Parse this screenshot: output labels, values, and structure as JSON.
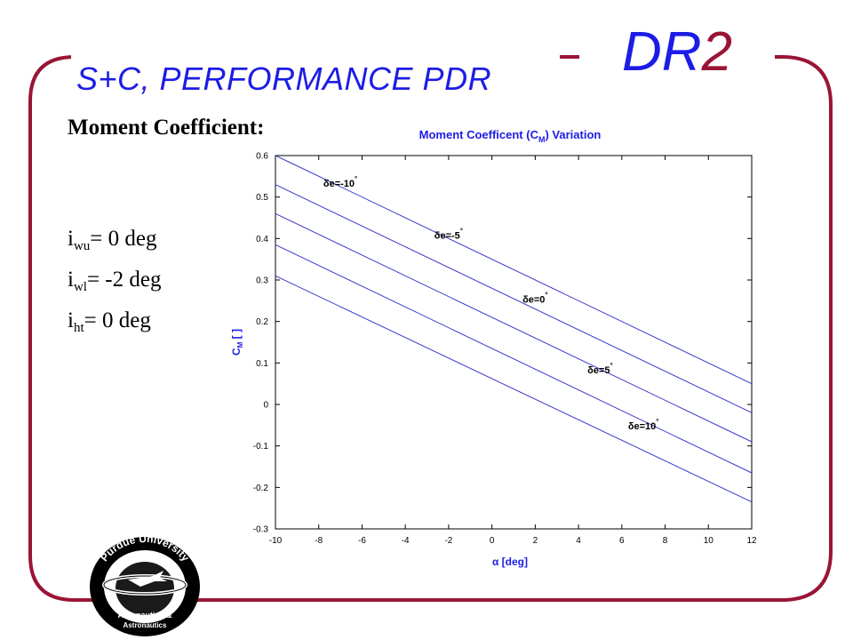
{
  "slide": {
    "subtitle": "S+C, PERFORMANCE PDR",
    "brand_main": "DR",
    "brand_number": "2",
    "heading": "Moment Coefficient:",
    "colors": {
      "frame": "#9a1535",
      "blue": "#1c1ce6"
    }
  },
  "incidence": [
    {
      "symbol": "i",
      "subscript": "wu",
      "text": "= 0 deg"
    },
    {
      "symbol": "i",
      "subscript": "wl",
      "text": "= -2 deg"
    },
    {
      "symbol": "i",
      "subscript": "ht",
      "text": "= 0 deg"
    }
  ],
  "logo": {
    "top_text": "Purdue University",
    "bottom_text_1": "Aeronautics &",
    "bottom_text_2": "Astronautics",
    "icon": "purdue-aero-logo-icon"
  },
  "chart_data": {
    "type": "line",
    "title_prefix": "Moment Coefficent (C",
    "title_sub": "M",
    "title_suffix": ") Variation",
    "xlabel": "α [deg]",
    "ylabel_main": "C",
    "ylabel_sub": "M",
    "ylabel_suffix": " [ ]",
    "xlim": [
      -10,
      12
    ],
    "ylim": [
      -0.3,
      0.6
    ],
    "xticks": [
      -10,
      -8,
      -6,
      -4,
      -2,
      0,
      2,
      4,
      6,
      8,
      10,
      12
    ],
    "yticks": [
      -0.3,
      -0.2,
      -0.1,
      0,
      0.1,
      0.2,
      0.3,
      0.4,
      0.5,
      0.6
    ],
    "grid": false,
    "line_color": "#3a3acc",
    "series": [
      {
        "name": "δe=-10°",
        "x": [
          -10,
          12
        ],
        "y": [
          0.6,
          0.05
        ],
        "label_text": "δe=-10",
        "label_x": -7,
        "label_y": 0.525
      },
      {
        "name": "δe=-5°",
        "x": [
          -10,
          12
        ],
        "y": [
          0.53,
          -0.02
        ],
        "label_text": "δe=-5",
        "label_x": -2,
        "label_y": 0.4
      },
      {
        "name": "δe=0°",
        "x": [
          -10,
          12
        ],
        "y": [
          0.46,
          -0.09
        ],
        "label_text": "δe=0",
        "label_x": 2,
        "label_y": 0.245
      },
      {
        "name": "δe=5°",
        "x": [
          -10,
          12
        ],
        "y": [
          0.385,
          -0.165
        ],
        "label_text": "δe=5",
        "label_x": 5,
        "label_y": 0.075
      },
      {
        "name": "δe=10°",
        "x": [
          -10,
          12
        ],
        "y": [
          0.31,
          -0.235
        ],
        "label_text": "δe=10",
        "label_x": 7,
        "label_y": -0.06
      }
    ]
  }
}
